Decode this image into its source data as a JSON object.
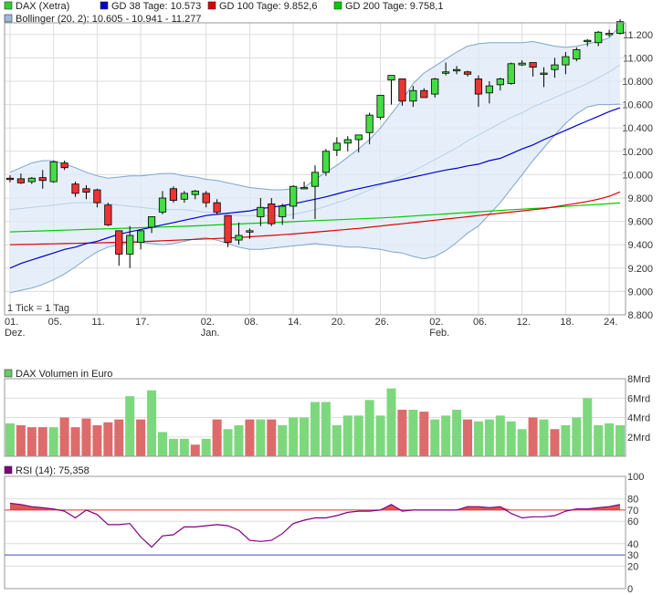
{
  "chart_data": [
    {
      "type": "candlestick",
      "title": "DAX (Xetra)",
      "legend": [
        {
          "label": "DAX (Xetra)",
          "color": "#33cc33"
        },
        {
          "label": "GD 38 Tage: 10.573",
          "color": "#0000cc"
        },
        {
          "label": "GD 100 Tage: 9.852,6",
          "color": "#dd0000"
        },
        {
          "label": "GD 200 Tage: 9.758,1",
          "color": "#00cc00"
        },
        {
          "label": "Bollinger (20, 2): 10.605 - 10.941 - 11.277",
          "color": "#99bbdd"
        }
      ],
      "note": "1 Tick = 1 Tag",
      "ylim": [
        8800,
        11300
      ],
      "yticks": [
        8800,
        9000,
        9200,
        9400,
        9600,
        9800,
        10000,
        10200,
        10400,
        10600,
        10800,
        11000,
        11200
      ],
      "ytick_labels": [
        "8.800",
        "9.000",
        "9.200",
        "9.400",
        "9.600",
        "9.800",
        "10.000",
        "10.200",
        "10.400",
        "10.600",
        "10.800",
        "11.000",
        "11.200"
      ],
      "xtick_labels": [
        {
          "i": 0,
          "day": "01.",
          "month": "Dez."
        },
        {
          "i": 4,
          "day": "05.",
          "month": ""
        },
        {
          "i": 8,
          "day": "11.",
          "month": ""
        },
        {
          "i": 12,
          "day": "17.",
          "month": ""
        },
        {
          "i": 18,
          "day": "02.",
          "month": "Jan."
        },
        {
          "i": 22,
          "day": "08.",
          "month": ""
        },
        {
          "i": 26,
          "day": "14.",
          "month": ""
        },
        {
          "i": 30,
          "day": "20.",
          "month": ""
        },
        {
          "i": 34,
          "day": "26.",
          "month": ""
        },
        {
          "i": 39,
          "day": "02.",
          "month": "Feb."
        },
        {
          "i": 43,
          "day": "06.",
          "month": ""
        },
        {
          "i": 47,
          "day": "12.",
          "month": ""
        },
        {
          "i": 51,
          "day": "18.",
          "month": ""
        },
        {
          "i": 55,
          "day": "24.",
          "month": ""
        }
      ],
      "ohlc": [
        [
          9970,
          9995,
          9935,
          9965
        ],
        [
          9965,
          10010,
          9920,
          9930
        ],
        [
          9940,
          9980,
          9920,
          9970
        ],
        [
          9975,
          10040,
          9880,
          9950
        ],
        [
          9940,
          10120,
          9930,
          10110
        ],
        [
          10100,
          10120,
          10040,
          10060
        ],
        [
          9920,
          9940,
          9810,
          9840
        ],
        [
          9880,
          9910,
          9790,
          9850
        ],
        [
          9870,
          9880,
          9720,
          9760
        ],
        [
          9740,
          9760,
          9560,
          9570
        ],
        [
          9520,
          9520,
          9220,
          9320
        ],
        [
          9320,
          9560,
          9200,
          9480
        ],
        [
          9420,
          9520,
          9360,
          9520
        ],
        [
          9550,
          9640,
          9500,
          9640
        ],
        [
          9680,
          9860,
          9660,
          9800
        ],
        [
          9880,
          9900,
          9760,
          9780
        ],
        [
          9790,
          9860,
          9760,
          9840
        ],
        [
          9830,
          9870,
          9790,
          9860
        ],
        [
          9840,
          9860,
          9720,
          9760
        ],
        [
          9760,
          9790,
          9660,
          9680
        ],
        [
          9650,
          9650,
          9380,
          9420
        ],
        [
          9440,
          9590,
          9400,
          9480
        ],
        [
          9520,
          9540,
          9450,
          9520
        ],
        [
          9640,
          9800,
          9560,
          9720
        ],
        [
          9750,
          9800,
          9560,
          9580
        ],
        [
          9640,
          9750,
          9570,
          9730
        ],
        [
          9730,
          9910,
          9620,
          9900
        ],
        [
          9890,
          9940,
          9880,
          9890
        ],
        [
          9900,
          10080,
          9620,
          10020
        ],
        [
          10020,
          10220,
          9990,
          10200
        ],
        [
          10210,
          10320,
          10160,
          10270
        ],
        [
          10270,
          10330,
          10200,
          10300
        ],
        [
          10300,
          10330,
          10190,
          10340
        ],
        [
          10360,
          10530,
          10260,
          10510
        ],
        [
          10490,
          10680,
          10470,
          10680
        ],
        [
          10810,
          10850,
          10600,
          10850
        ],
        [
          10820,
          10820,
          10590,
          10630
        ],
        [
          10630,
          10760,
          10580,
          10720
        ],
        [
          10720,
          10740,
          10660,
          10660
        ],
        [
          10690,
          10830,
          10660,
          10820
        ],
        [
          10870,
          10960,
          10850,
          10880
        ],
        [
          10900,
          10930,
          10860,
          10900
        ],
        [
          10880,
          10890,
          10840,
          10860
        ],
        [
          10820,
          10850,
          10580,
          10690
        ],
        [
          10700,
          10800,
          10610,
          10760
        ],
        [
          10770,
          10830,
          10720,
          10820
        ],
        [
          10780,
          10960,
          10770,
          10950
        ],
        [
          10940,
          10980,
          10930,
          10955
        ],
        [
          10960,
          10960,
          10840,
          10920
        ],
        [
          10870,
          10920,
          10750,
          10870
        ],
        [
          10900,
          11000,
          10830,
          10940
        ],
        [
          10940,
          11050,
          10860,
          11010
        ],
        [
          10990,
          11090,
          10970,
          11070
        ],
        [
          11140,
          11160,
          11100,
          11150
        ],
        [
          11130,
          11230,
          11100,
          11220
        ],
        [
          11200,
          11240,
          11180,
          11210
        ],
        [
          11210,
          11330,
          11200,
          11310
        ]
      ],
      "gd38": [
        9200,
        9240,
        9270,
        9300,
        9330,
        9360,
        9380,
        9410,
        9430,
        9460,
        9490,
        9510,
        9530,
        9550,
        9570,
        9590,
        9610,
        9630,
        9650,
        9660,
        9670,
        9680,
        9690,
        9710,
        9720,
        9735,
        9750,
        9770,
        9790,
        9810,
        9835,
        9860,
        9880,
        9900,
        9920,
        9940,
        9960,
        9980,
        10000,
        10020,
        10040,
        10055,
        10075,
        10090,
        10120,
        10140,
        10180,
        10220,
        10255,
        10300,
        10340,
        10380,
        10420,
        10460,
        10500,
        10540,
        10573
      ],
      "gd100": [
        9400,
        9402,
        9404,
        9406,
        9408,
        9410,
        9412,
        9414,
        9416,
        9418,
        9420,
        9422,
        9426,
        9430,
        9434,
        9438,
        9442,
        9446,
        9450,
        9454,
        9458,
        9462,
        9468,
        9474,
        9480,
        9486,
        9492,
        9500,
        9508,
        9516,
        9524,
        9532,
        9540,
        9550,
        9560,
        9570,
        9580,
        9590,
        9600,
        9610,
        9620,
        9630,
        9640,
        9650,
        9660,
        9670,
        9680,
        9690,
        9700,
        9710,
        9725,
        9740,
        9755,
        9770,
        9790,
        9815,
        9852.6
      ],
      "gd200": [
        9510,
        9513,
        9516,
        9519,
        9522,
        9525,
        9528,
        9531,
        9534,
        9537,
        9540,
        9543,
        9546,
        9549,
        9552,
        9555,
        9558,
        9562,
        9566,
        9570,
        9574,
        9578,
        9582,
        9586,
        9590,
        9594,
        9598,
        9602,
        9606,
        9610,
        9614,
        9618,
        9622,
        9626,
        9630,
        9634,
        9640,
        9646,
        9652,
        9658,
        9664,
        9670,
        9676,
        9682,
        9688,
        9694,
        9700,
        9705,
        9710,
        9715,
        9720,
        9728,
        9735,
        9740,
        9745,
        9752,
        9758.1
      ],
      "boll_upper": [
        10020,
        10060,
        10100,
        10120,
        10120,
        10090,
        10060,
        10020,
        9990,
        9970,
        9980,
        9990,
        9990,
        10000,
        10010,
        10010,
        9990,
        9980,
        9960,
        9950,
        9930,
        9910,
        9890,
        9880,
        9870,
        9870,
        9880,
        9890,
        9960,
        10020,
        10080,
        10150,
        10220,
        10300,
        10400,
        10520,
        10640,
        10780,
        10870,
        10930,
        10990,
        11050,
        11100,
        11120,
        11130,
        11130,
        11130,
        11130,
        11140,
        11120,
        11100,
        11090,
        11100,
        11120,
        11140,
        11170,
        11277
      ],
      "boll_mid": [
        9700,
        9710,
        9720,
        9730,
        9740,
        9750,
        9760,
        9760,
        9760,
        9750,
        9740,
        9730,
        9720,
        9710,
        9700,
        9700,
        9700,
        9690,
        9680,
        9670,
        9660,
        9650,
        9650,
        9650,
        9650,
        9650,
        9660,
        9680,
        9700,
        9730,
        9760,
        9790,
        9830,
        9870,
        9910,
        9950,
        9990,
        10030,
        10080,
        10130,
        10180,
        10230,
        10290,
        10340,
        10390,
        10440,
        10490,
        10530,
        10580,
        10620,
        10660,
        10700,
        10740,
        10780,
        10830,
        10880,
        10941
      ],
      "boll_lower": [
        8990,
        9010,
        9030,
        9060,
        9100,
        9150,
        9210,
        9280,
        9340,
        9380,
        9400,
        9420,
        9420,
        9410,
        9400,
        9410,
        9430,
        9450,
        9460,
        9440,
        9410,
        9380,
        9360,
        9360,
        9370,
        9380,
        9390,
        9400,
        9410,
        9400,
        9390,
        9380,
        9380,
        9370,
        9360,
        9340,
        9330,
        9300,
        9280,
        9300,
        9350,
        9420,
        9500,
        9560,
        9660,
        9760,
        9880,
        10000,
        10120,
        10230,
        10340,
        10440,
        10520,
        10580,
        10600,
        10600,
        10605
      ]
    },
    {
      "type": "bar",
      "title": "DAX Volumen in Euro",
      "ylim": [
        0,
        8
      ],
      "ytick_labels": [
        "2Mrd",
        "4Mrd",
        "6Mrd",
        "8Mrd"
      ],
      "yticks": [
        2,
        4,
        6,
        8
      ],
      "volumes": [
        3.4,
        3.2,
        3.0,
        3.0,
        3.0,
        4.0,
        3.0,
        3.9,
        3.2,
        3.5,
        3.8,
        6.2,
        3.8,
        6.8,
        2.5,
        1.8,
        1.8,
        1.2,
        1.8,
        3.8,
        2.8,
        3.2,
        3.8,
        3.8,
        3.8,
        3.2,
        4.0,
        4.0,
        5.6,
        5.6,
        3.2,
        4.2,
        4.2,
        5.8,
        4.2,
        7.0,
        4.8,
        4.8,
        4.6,
        3.8,
        4.2,
        4.8,
        3.8,
        3.6,
        3.8,
        4.2,
        3.6,
        2.8,
        4.0,
        3.8,
        2.8,
        3.2,
        4.0,
        6.0,
        3.2,
        3.4,
        3.2
      ],
      "directions": [
        1,
        0,
        0,
        0,
        1,
        0,
        0,
        0,
        0,
        0,
        0,
        1,
        0,
        1,
        1,
        1,
        1,
        0,
        1,
        0,
        1,
        1,
        0,
        1,
        0,
        1,
        1,
        1,
        1,
        1,
        1,
        1,
        1,
        1,
        1,
        1,
        0,
        1,
        0,
        1,
        1,
        1,
        0,
        1,
        1,
        1,
        1,
        1,
        0,
        1,
        0,
        1,
        1,
        1,
        1,
        1,
        1
      ]
    },
    {
      "type": "line",
      "title": "RSI (14): 75,358",
      "ylim": [
        0,
        100
      ],
      "yticks": [
        0,
        20,
        30,
        40,
        60,
        70,
        80,
        100
      ],
      "ytick_labels": [
        "0",
        "20",
        "30",
        "40",
        "60",
        "70",
        "80",
        "100"
      ],
      "hlines": [
        70,
        30
      ],
      "rsi": [
        76,
        75,
        73,
        72,
        71,
        69,
        63,
        70,
        66,
        57,
        57,
        58,
        46,
        37,
        47,
        48,
        55,
        55,
        56,
        57,
        56,
        52,
        43,
        42,
        43,
        49,
        58,
        61,
        63,
        63,
        65,
        68,
        69,
        69,
        70,
        75,
        69,
        70,
        70,
        70,
        70,
        70,
        73,
        73,
        72,
        73,
        67,
        63,
        64,
        64,
        65,
        69,
        71,
        71,
        72,
        73,
        75
      ]
    }
  ]
}
